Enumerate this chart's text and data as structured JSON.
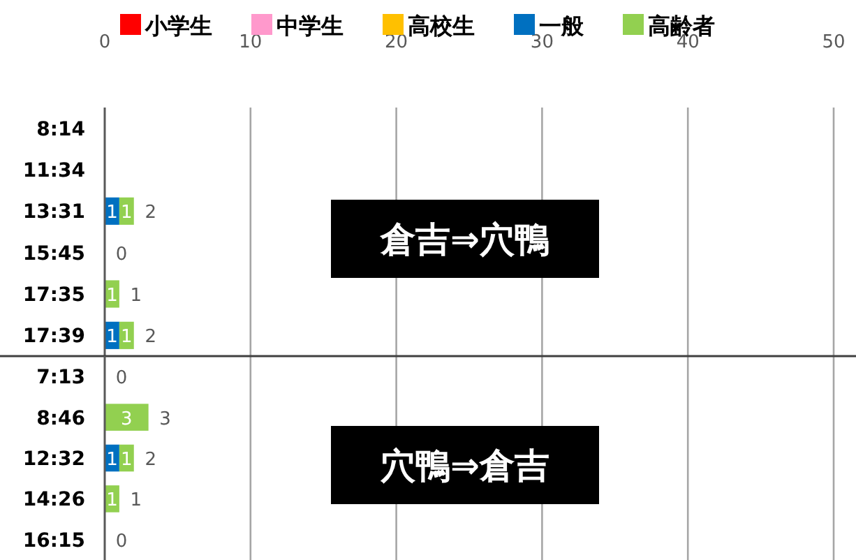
{
  "chart_data": [
    {
      "type": "bar",
      "orientation": "horizontal",
      "stacked": true,
      "legend": "top",
      "grid": "x",
      "xlim": [
        0,
        50
      ],
      "xticks": [
        0,
        10,
        20,
        30,
        40,
        50
      ],
      "categories": [
        "8:14",
        "11:34",
        "13:31",
        "15:45",
        "17:35",
        "17:39"
      ],
      "annotations": [
        "倉吉⇒穴鴨"
      ],
      "totals": [
        null,
        null,
        "2",
        "0",
        "1",
        "2"
      ],
      "series": [
        {
          "name": "小学生",
          "color": "#ff0000",
          "values": [
            null,
            null,
            0,
            0,
            0,
            0
          ],
          "value_labels": [
            null,
            null,
            null,
            null,
            null,
            null
          ]
        },
        {
          "name": "中学生",
          "color": "#ff99cc",
          "values": [
            null,
            null,
            0,
            0,
            0,
            0
          ],
          "value_labels": [
            null,
            null,
            null,
            null,
            null,
            null
          ]
        },
        {
          "name": "高校生",
          "color": "#ffc000",
          "values": [
            null,
            null,
            0,
            0,
            0,
            0
          ],
          "value_labels": [
            null,
            null,
            null,
            null,
            null,
            null
          ]
        },
        {
          "name": "一般",
          "color": "#0070c0",
          "values": [
            null,
            null,
            1,
            0,
            0,
            1
          ],
          "value_labels": [
            null,
            null,
            "1",
            null,
            null,
            "1"
          ]
        },
        {
          "name": "高齢者",
          "color": "#92d050",
          "values": [
            null,
            null,
            1,
            0,
            1,
            1
          ],
          "value_labels": [
            null,
            null,
            "1",
            null,
            "1",
            "1"
          ]
        }
      ]
    },
    {
      "type": "bar",
      "orientation": "horizontal",
      "stacked": true,
      "grid": "x",
      "xlim": [
        0,
        50
      ],
      "xticks": [
        0,
        10,
        20,
        30,
        40,
        50
      ],
      "tick_labels": "y",
      "categories": [
        "7:13",
        "8:46",
        "12:32",
        "14:26",
        "16:15"
      ],
      "annotations": [
        "穴鴨⇒倉吉"
      ],
      "totals": [
        "0",
        "3",
        "2",
        "1",
        "0"
      ],
      "series": [
        {
          "color": "#ff0000",
          "values": [
            0,
            0,
            0,
            0,
            0
          ],
          "value_labels": [
            null,
            null,
            null,
            null,
            null
          ]
        },
        {
          "color": "#ff99cc",
          "values": [
            0,
            0,
            0,
            0,
            0
          ],
          "value_labels": [
            null,
            null,
            null,
            null,
            null
          ]
        },
        {
          "color": "#ffc000",
          "values": [
            0,
            0,
            0,
            0,
            0
          ],
          "value_labels": [
            null,
            null,
            null,
            null,
            null
          ]
        },
        {
          "color": "#0070c0",
          "values": [
            0,
            0,
            1,
            0,
            0
          ],
          "value_labels": [
            null,
            null,
            "1",
            null,
            null
          ]
        },
        {
          "color": "#92d050",
          "values": [
            0,
            3,
            1,
            1,
            0
          ],
          "value_labels": [
            null,
            "3",
            "1",
            "1",
            null
          ]
        }
      ]
    }
  ]
}
